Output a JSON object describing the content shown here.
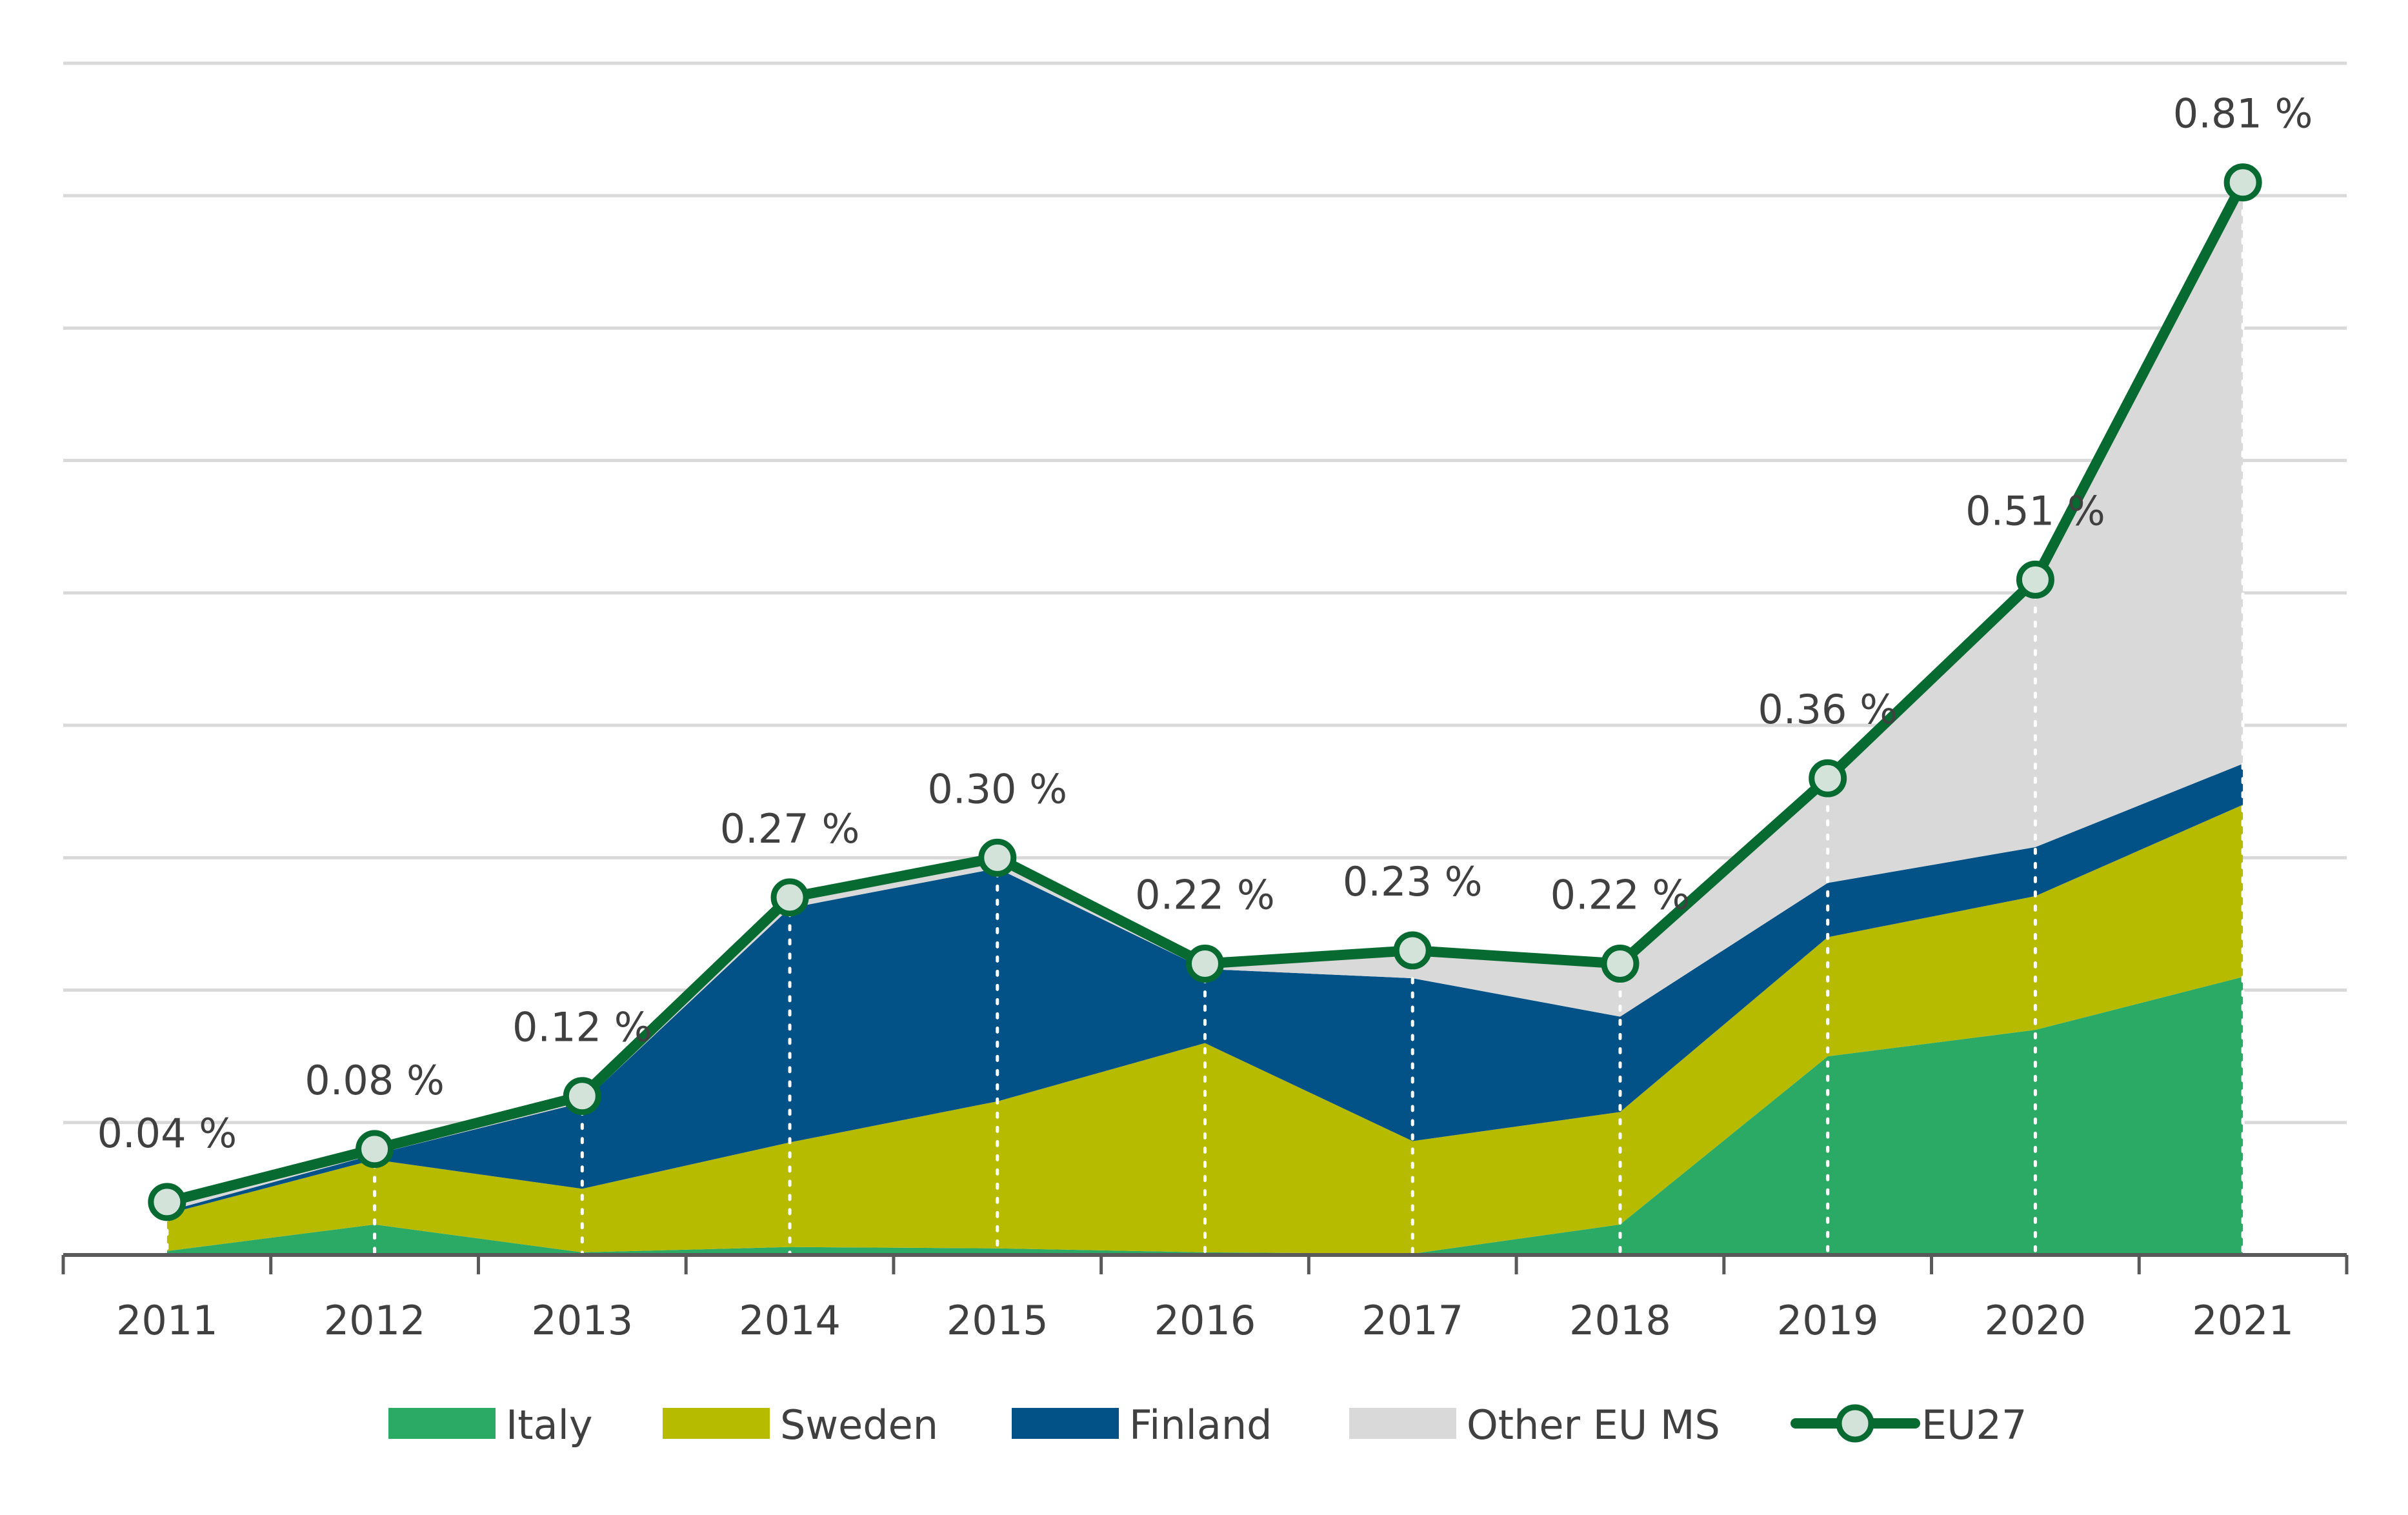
{
  "chart_data": {
    "type": "area",
    "stacked": true,
    "title": "",
    "xlabel": "",
    "ylabel": "",
    "ylim": [
      0,
      0.9
    ],
    "y_gridline_step": 0.1,
    "y_tick_labels_shown": false,
    "grid": true,
    "legend_position": "bottom",
    "categories": [
      "2011",
      "2012",
      "2013",
      "2014",
      "2015",
      "2016",
      "2017",
      "2018",
      "2019",
      "2020",
      "2021"
    ],
    "series": [
      {
        "name": "Italy",
        "kind": "stacked-area",
        "color": "#2BAA66",
        "values": [
          0.003,
          0.023,
          0.002,
          0.006,
          0.005,
          0.002,
          0.001,
          0.023,
          0.15,
          0.17,
          0.21
        ]
      },
      {
        "name": "Sweden",
        "kind": "stacked-area",
        "color": "#B6BB00",
        "values": [
          0.028,
          0.049,
          0.048,
          0.079,
          0.111,
          0.158,
          0.085,
          0.085,
          0.09,
          0.101,
          0.13
        ]
      },
      {
        "name": "Finland",
        "kind": "stacked-area",
        "color": "#035287",
        "values": [
          0.002,
          0.004,
          0.065,
          0.177,
          0.176,
          0.056,
          0.123,
          0.072,
          0.041,
          0.037,
          0.031
        ]
      },
      {
        "name": "Other EU MS",
        "kind": "stacked-area",
        "color": "#D9D9D9",
        "values": [
          0.007,
          0.004,
          0.005,
          0.008,
          0.008,
          0.004,
          0.021,
          0.04,
          0.079,
          0.202,
          0.439
        ]
      },
      {
        "name": "EU27",
        "kind": "line-markers",
        "color": "#076A31",
        "marker_fill": "#D3E3DA",
        "values": [
          0.04,
          0.08,
          0.12,
          0.27,
          0.3,
          0.22,
          0.23,
          0.22,
          0.36,
          0.51,
          0.81
        ]
      }
    ],
    "data_labels": [
      "0.04 %",
      "0.08 %",
      "0.12 %",
      "0.27 %",
      "0.30 %",
      "0.22 %",
      "0.23 %",
      "0.22 %",
      "0.36 %",
      "0.51 %",
      "0.81 %"
    ],
    "drop_lines": "white dotted vertical lines from each EU27 point to the axis"
  }
}
